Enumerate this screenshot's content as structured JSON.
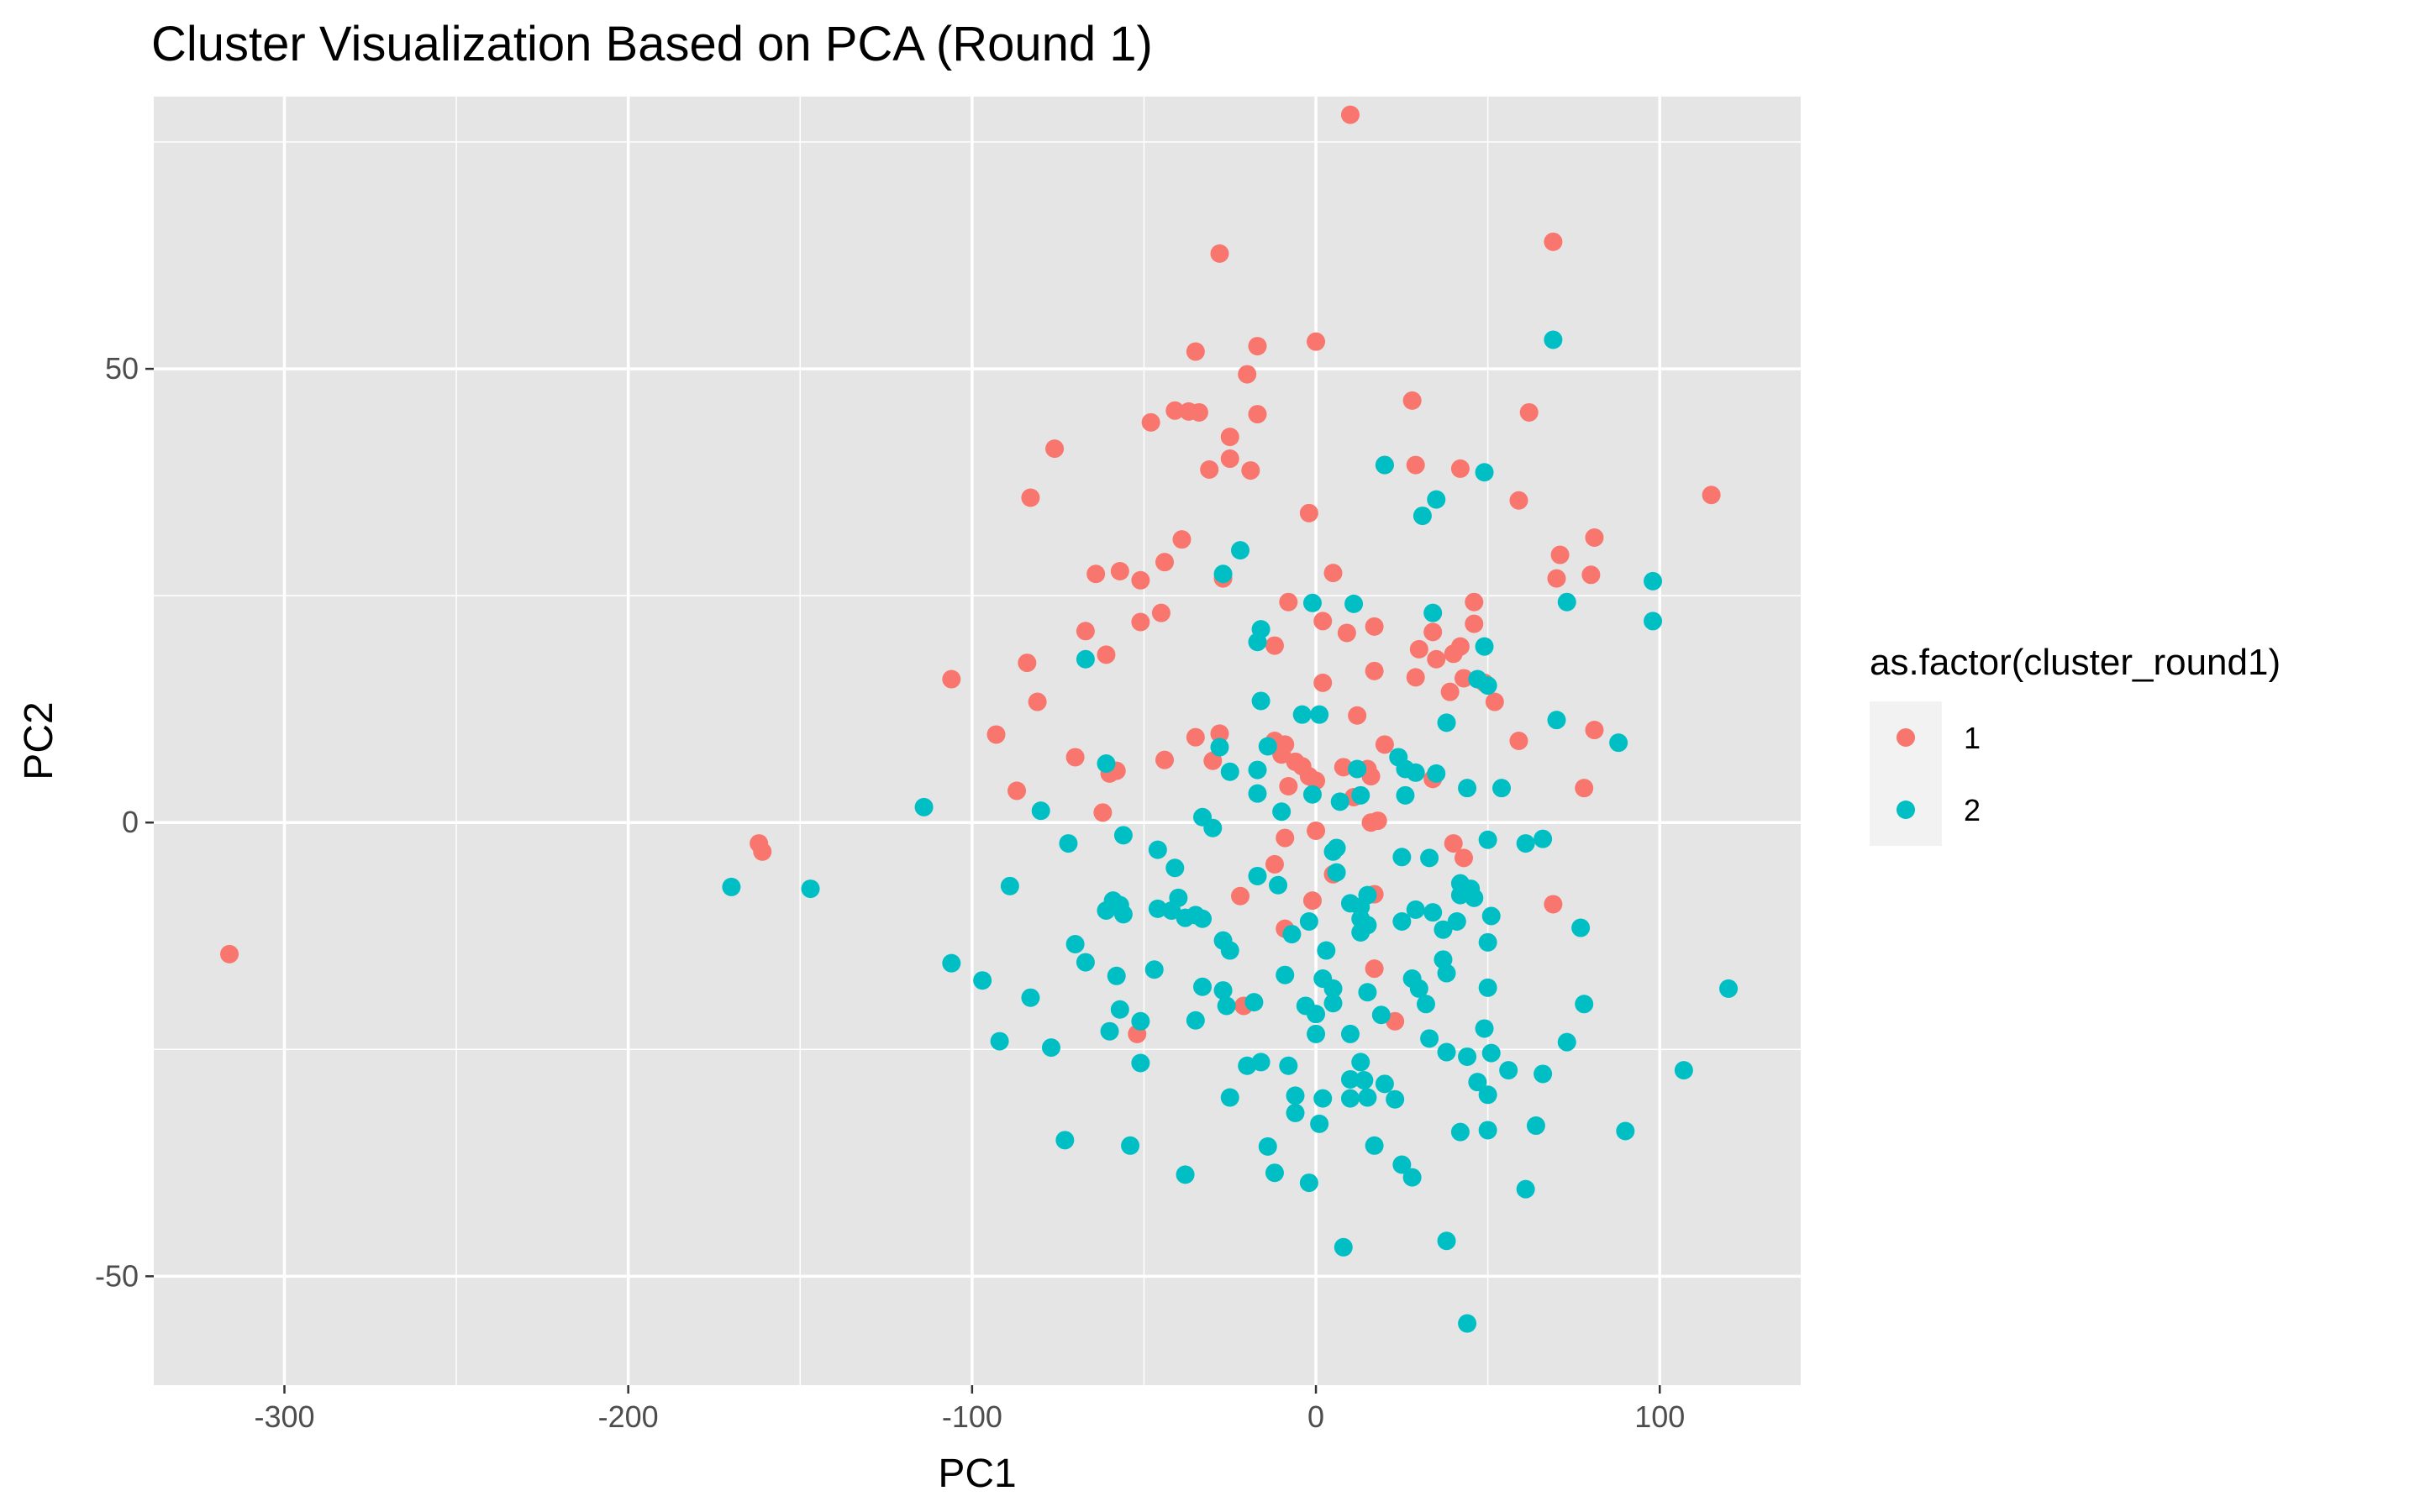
{
  "chart_data": {
    "type": "scatter",
    "title": "Cluster Visualization Based on PCA (Round 1)",
    "xlabel": "PC1",
    "ylabel": "PC2",
    "xlim": [
      -338,
      141
    ],
    "ylim": [
      -62,
      80
    ],
    "x_major_ticks": [
      -300,
      -200,
      -100,
      0,
      100
    ],
    "x_minor_ticks": [
      -250,
      -150,
      -50,
      50
    ],
    "y_major_ticks": [
      -50,
      0,
      50
    ],
    "y_minor_ticks": [
      -25,
      25,
      75
    ],
    "grid": true,
    "panel_background": "#e5e5e5",
    "legend": {
      "title": "as.factor(cluster_round1)",
      "position": "right"
    },
    "series": [
      {
        "name": "1",
        "color": "#f8766d",
        "points": [
          [
            -316,
            -14.5
          ],
          [
            -162,
            -2.3
          ],
          [
            -161,
            -3.2
          ],
          [
            10,
            78
          ],
          [
            -28,
            62.7
          ],
          [
            69,
            64
          ],
          [
            0,
            53
          ],
          [
            -17,
            52.5
          ],
          [
            -35,
            51.9
          ],
          [
            -20,
            49.4
          ],
          [
            28,
            46.5
          ],
          [
            62,
            45.2
          ],
          [
            -17,
            45
          ],
          [
            -41,
            45.4
          ],
          [
            -37,
            45.3
          ],
          [
            -34,
            45.2
          ],
          [
            -48,
            44.1
          ],
          [
            -25,
            42.5
          ],
          [
            -76,
            41.2
          ],
          [
            -25,
            40.1
          ],
          [
            -31,
            38.9
          ],
          [
            -19,
            38.8
          ],
          [
            20,
            39.4
          ],
          [
            29,
            39.4
          ],
          [
            42,
            39
          ],
          [
            115,
            36.1
          ],
          [
            59,
            35.5
          ],
          [
            -83,
            35.8
          ],
          [
            -2,
            34.1
          ],
          [
            81,
            31.4
          ],
          [
            -39,
            31.2
          ],
          [
            71,
            29.5
          ],
          [
            -44,
            28.7
          ],
          [
            5,
            27.5
          ],
          [
            -57,
            27.7
          ],
          [
            -64,
            27.4
          ],
          [
            -51,
            26.7
          ],
          [
            80,
            27.3
          ],
          [
            70,
            26.9
          ],
          [
            -27,
            26.9
          ],
          [
            46,
            24.3
          ],
          [
            -8,
            24.3
          ],
          [
            -45,
            23.1
          ],
          [
            2,
            22.2
          ],
          [
            -51,
            22.1
          ],
          [
            46,
            21.9
          ],
          [
            17,
            21.6
          ],
          [
            34,
            21
          ],
          [
            -67,
            21.1
          ],
          [
            9,
            20.9
          ],
          [
            -12,
            19.5
          ],
          [
            42,
            19.4
          ],
          [
            30,
            19.1
          ],
          [
            35,
            18
          ],
          [
            40,
            18.6
          ],
          [
            -61,
            18.5
          ],
          [
            -84,
            17.6
          ],
          [
            17,
            16.7
          ],
          [
            29,
            16
          ],
          [
            -106,
            15.8
          ],
          [
            43,
            15.9
          ],
          [
            49,
            15.4
          ],
          [
            2,
            15.4
          ],
          [
            39,
            14.4
          ],
          [
            52,
            13.3
          ],
          [
            -81,
            13.3
          ],
          [
            12,
            11.8
          ],
          [
            -93,
            9.7
          ],
          [
            81,
            10.2
          ],
          [
            -28,
            9.8
          ],
          [
            -35,
            9.4
          ],
          [
            59,
            9
          ],
          [
            20,
            8.6
          ],
          [
            -12,
            9
          ],
          [
            -9,
            8.6
          ],
          [
            -10,
            7.5
          ],
          [
            -6,
            6.7
          ],
          [
            -70,
            7.2
          ],
          [
            -44,
            6.9
          ],
          [
            -30,
            6.8
          ],
          [
            -4,
            6.2
          ],
          [
            8,
            6.1
          ],
          [
            15,
            5.9
          ],
          [
            -58,
            5.7
          ],
          [
            -60,
            5.4
          ],
          [
            16,
            5.1
          ],
          [
            34,
            4.8
          ],
          [
            0,
            4.6
          ],
          [
            -2,
            5.1
          ],
          [
            -8,
            4
          ],
          [
            78,
            3.8
          ],
          [
            -87,
            3.5
          ],
          [
            11,
            2.8
          ],
          [
            18,
            0.2
          ],
          [
            16,
            0
          ],
          [
            -62,
            1.1
          ],
          [
            0,
            -0.9
          ],
          [
            -9,
            -1.7
          ],
          [
            40,
            -2.3
          ],
          [
            43,
            -3.9
          ],
          [
            -12,
            -4.6
          ],
          [
            5,
            -5.7
          ],
          [
            17,
            -7.9
          ],
          [
            -22,
            -8.1
          ],
          [
            -1,
            -8.6
          ],
          [
            69,
            -9
          ],
          [
            -9,
            -11.7
          ],
          [
            17,
            -16.1
          ],
          [
            -21,
            -20.2
          ],
          [
            23,
            -21.9
          ],
          [
            -52,
            -23.3
          ]
        ]
      },
      {
        "name": "2",
        "color": "#00bfc4",
        "points": [
          [
            69,
            53.2
          ],
          [
            20,
            39.4
          ],
          [
            49,
            38.6
          ],
          [
            35,
            35.6
          ],
          [
            31,
            33.8
          ],
          [
            -22,
            30
          ],
          [
            -27,
            27.4
          ],
          [
            98,
            26.6
          ],
          [
            73,
            24.3
          ],
          [
            -1,
            24.2
          ],
          [
            11,
            24.1
          ],
          [
            34,
            23.1
          ],
          [
            98,
            22.2
          ],
          [
            -16,
            21.3
          ],
          [
            -17,
            19.9
          ],
          [
            49,
            19.4
          ],
          [
            -67,
            18
          ],
          [
            47,
            15.8
          ],
          [
            50,
            15.1
          ],
          [
            -16,
            13.4
          ],
          [
            -4,
            11.9
          ],
          [
            1,
            11.9
          ],
          [
            38,
            11
          ],
          [
            70,
            11.3
          ],
          [
            -14,
            8.4
          ],
          [
            -28,
            8.3
          ],
          [
            88,
            8.8
          ],
          [
            24,
            7.2
          ],
          [
            -61,
            6.5
          ],
          [
            12,
            5.9
          ],
          [
            -17,
            5.8
          ],
          [
            -25,
            5.6
          ],
          [
            26,
            5.9
          ],
          [
            29,
            5.5
          ],
          [
            35,
            5.4
          ],
          [
            54,
            3.8
          ],
          [
            44,
            3.8
          ],
          [
            -17,
            3.2
          ],
          [
            13,
            3
          ],
          [
            26,
            3
          ],
          [
            -1,
            3.1
          ],
          [
            7,
            2.3
          ],
          [
            -114,
            1.7
          ],
          [
            -80,
            1.3
          ],
          [
            -10,
            1.2
          ],
          [
            -33,
            0.6
          ],
          [
            -30,
            -0.6
          ],
          [
            50,
            -1.9
          ],
          [
            -56,
            -1.4
          ],
          [
            61,
            -2.3
          ],
          [
            -72,
            -2.3
          ],
          [
            66,
            -1.8
          ],
          [
            6,
            -2.8
          ],
          [
            5,
            -3.2
          ],
          [
            -46,
            -3
          ],
          [
            33,
            -3.9
          ],
          [
            25,
            -3.8
          ],
          [
            -11,
            -6.9
          ],
          [
            -41,
            -5
          ],
          [
            -17,
            -5.9
          ],
          [
            6,
            -5.5
          ],
          [
            42,
            -6.7
          ],
          [
            -170,
            -7.1
          ],
          [
            -147,
            -7.3
          ],
          [
            -89,
            -7
          ],
          [
            45,
            -7.3
          ],
          [
            42,
            -8
          ],
          [
            10,
            -8.9
          ],
          [
            46,
            -8.3
          ],
          [
            15,
            -8
          ],
          [
            -59,
            -8.6
          ],
          [
            -40,
            -8.3
          ],
          [
            13,
            -9.3
          ],
          [
            -57,
            -9.1
          ],
          [
            -46,
            -9.5
          ],
          [
            -56,
            -10.1
          ],
          [
            -61,
            -9.7
          ],
          [
            -42,
            -9.7
          ],
          [
            29,
            -9.6
          ],
          [
            -35,
            -10.2
          ],
          [
            -38,
            -10.5
          ],
          [
            13,
            -10.6
          ],
          [
            34,
            -9.9
          ],
          [
            51,
            -10.3
          ],
          [
            25,
            -10.9
          ],
          [
            15,
            -11.3
          ],
          [
            -2,
            -10.9
          ],
          [
            -33,
            -10.6
          ],
          [
            77,
            -11.6
          ],
          [
            41,
            -10.9
          ],
          [
            37,
            -11.8
          ],
          [
            -7,
            -12.3
          ],
          [
            13,
            -12.1
          ],
          [
            50,
            -13.2
          ],
          [
            -27,
            -13
          ],
          [
            -70,
            -13.4
          ],
          [
            -25,
            -14.1
          ],
          [
            3,
            -14.1
          ],
          [
            -106,
            -15.5
          ],
          [
            -67,
            -15.4
          ],
          [
            -47,
            -16.2
          ],
          [
            37,
            -15.1
          ],
          [
            -9,
            -16.8
          ],
          [
            38,
            -16.6
          ],
          [
            -58,
            -16.9
          ],
          [
            -97,
            -17.4
          ],
          [
            2,
            -17.2
          ],
          [
            28,
            -17.2
          ],
          [
            -33,
            -18.1
          ],
          [
            -27,
            -18.5
          ],
          [
            15,
            -18.7
          ],
          [
            30,
            -18.3
          ],
          [
            5,
            -18.3
          ],
          [
            50,
            -18.2
          ],
          [
            120,
            -18.3
          ],
          [
            -83,
            -19.3
          ],
          [
            -18,
            -19.8
          ],
          [
            -3,
            -20.2
          ],
          [
            5,
            -19.9
          ],
          [
            32,
            -20
          ],
          [
            78,
            -20
          ],
          [
            -57,
            -20.6
          ],
          [
            -26,
            -20.2
          ],
          [
            19,
            -21.2
          ],
          [
            0,
            -21.1
          ],
          [
            -51,
            -21.9
          ],
          [
            -35,
            -21.8
          ],
          [
            49,
            -22.7
          ],
          [
            -60,
            -23
          ],
          [
            10,
            -23.3
          ],
          [
            33,
            -23.8
          ],
          [
            0,
            -23.3
          ],
          [
            -92,
            -24.1
          ],
          [
            73,
            -24.2
          ],
          [
            -77,
            -24.8
          ],
          [
            38,
            -25.3
          ],
          [
            51,
            -25.4
          ],
          [
            44,
            -25.8
          ],
          [
            -16,
            -26.4
          ],
          [
            -20,
            -26.8
          ],
          [
            -8,
            -26.8
          ],
          [
            13,
            -26.4
          ],
          [
            -51,
            -26.5
          ],
          [
            107,
            -27.3
          ],
          [
            56,
            -27.3
          ],
          [
            66,
            -27.7
          ],
          [
            10,
            -28.3
          ],
          [
            14,
            -28.4
          ],
          [
            20,
            -28.8
          ],
          [
            47,
            -28.6
          ],
          [
            -25,
            -30.3
          ],
          [
            -6,
            -30.1
          ],
          [
            2,
            -30.4
          ],
          [
            10,
            -30.4
          ],
          [
            15,
            -30.3
          ],
          [
            23,
            -30.5
          ],
          [
            50,
            -30
          ],
          [
            -6,
            -32
          ],
          [
            1,
            -33.2
          ],
          [
            50,
            -33.9
          ],
          [
            64,
            -33.4
          ],
          [
            90,
            -34
          ],
          [
            42,
            -34.1
          ],
          [
            -73,
            -35
          ],
          [
            -54,
            -35.6
          ],
          [
            -14,
            -35.7
          ],
          [
            17,
            -35.6
          ],
          [
            25,
            -37.7
          ],
          [
            -12,
            -38.6
          ],
          [
            -38,
            -38.8
          ],
          [
            28,
            -39.1
          ],
          [
            -2,
            -39.7
          ],
          [
            61,
            -40.4
          ],
          [
            38,
            -46.1
          ],
          [
            8,
            -46.8
          ],
          [
            44,
            -55.2
          ]
        ]
      }
    ]
  }
}
